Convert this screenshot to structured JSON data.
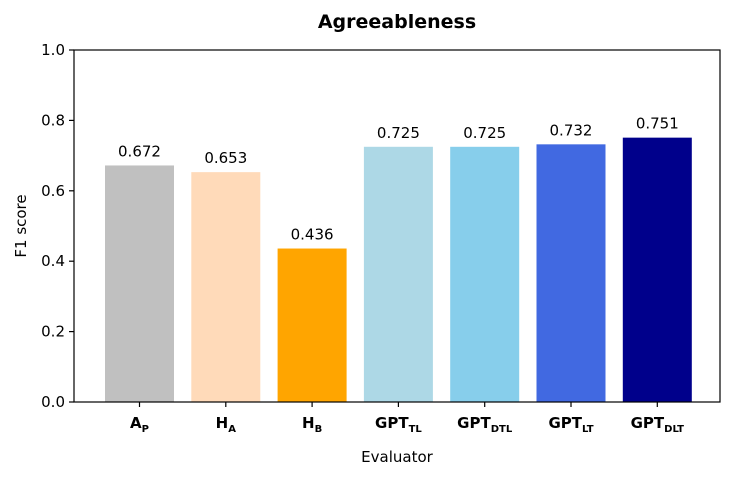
{
  "chart_data": {
    "type": "bar",
    "title": "Agreeableness",
    "xlabel": "Evaluator",
    "ylabel": "F1 score",
    "ylim": [
      0,
      1.0
    ],
    "yticks": [
      "0.0",
      "0.2",
      "0.4",
      "0.6",
      "0.8",
      "1.0"
    ],
    "categories": [
      {
        "main": "A",
        "sub": "P"
      },
      {
        "main": "H",
        "sub": "A"
      },
      {
        "main": "H",
        "sub": "B"
      },
      {
        "main": "GPT",
        "sub": "TL"
      },
      {
        "main": "GPT",
        "sub": "DTL"
      },
      {
        "main": "GPT",
        "sub": "LT"
      },
      {
        "main": "GPT",
        "sub": "DLT"
      }
    ],
    "values": [
      0.672,
      0.653,
      0.436,
      0.725,
      0.725,
      0.732,
      0.751
    ],
    "value_labels": [
      "0.672",
      "0.653",
      "0.436",
      "0.725",
      "0.725",
      "0.732",
      "0.751"
    ],
    "colors": [
      "#c0c0c0",
      "#ffdab9",
      "#ffa500",
      "#add8e6",
      "#87ceeb",
      "#4169e1",
      "#00008b"
    ],
    "grid": false
  }
}
